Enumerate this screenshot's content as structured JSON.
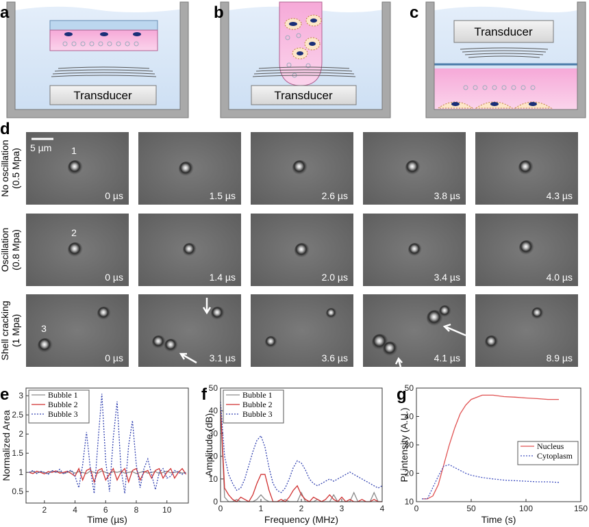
{
  "panels_top": [
    {
      "label": "a",
      "transducer": "Transducer"
    },
    {
      "label": "b",
      "transducer": "Transducer"
    },
    {
      "label": "c",
      "transducer": "Transducer"
    }
  ],
  "panel_d": {
    "label": "d",
    "scale_bar": "5 µm",
    "rows": [
      {
        "label": "No oscillation",
        "sublabel": "(0.5 Mpa)",
        "bubble": "1",
        "times": [
          "0 µs",
          "1.5 µs",
          "2.6 µs",
          "3.8 µs",
          "4.3 µs"
        ]
      },
      {
        "label": "Oscillation",
        "sublabel": "(0.8 Mpa)",
        "bubble": "2",
        "times": [
          "0 µs",
          "1.4 µs",
          "2.0 µs",
          "3.4 µs",
          "4.0 µs"
        ]
      },
      {
        "label": "Shell cracking",
        "sublabel": "(1 Mpa)",
        "bubble": "3",
        "times": [
          "0 µs",
          "3.1 µs",
          "3.6 µs",
          "4.1 µs",
          "8.9 µs"
        ]
      }
    ]
  },
  "chart_data": [
    {
      "type": "line",
      "label": "e",
      "x_label": "Time (µs)",
      "y_label": "Normalized Area",
      "xlim": [
        0.8,
        11.4
      ],
      "ylim": [
        0.2,
        3.2
      ],
      "xticks": [
        2,
        4,
        6,
        8,
        10
      ],
      "yticks": [
        0.5,
        1,
        1.5,
        2,
        2.5,
        3
      ],
      "legend": "upper left",
      "x": [
        1,
        1.25,
        1.5,
        1.75,
        2,
        2.25,
        2.5,
        2.75,
        3,
        3.25,
        3.5,
        3.75,
        4,
        4.25,
        4.5,
        4.75,
        5,
        5.25,
        5.5,
        5.75,
        6,
        6.25,
        6.5,
        6.75,
        7,
        7.25,
        7.5,
        7.75,
        8,
        8.25,
        8.5,
        8.75,
        9,
        9.25,
        9.5,
        9.75,
        10,
        10.25,
        10.5,
        10.75,
        11,
        11.25
      ],
      "series": [
        {
          "name": "Bubble 1",
          "color": "#8a8a8a",
          "line_style": "solid",
          "values": [
            1.0,
            1.03,
            0.98,
            1.02,
            1.0,
            0.97,
            1.04,
            1.0,
            1.02,
            0.97,
            1.0,
            1.03,
            0.98,
            1.02,
            1.0,
            0.97,
            1.03,
            1.0,
            0.98,
            1.04,
            1.0,
            0.97,
            1.02,
            1.0,
            1.03,
            0.98,
            1.0,
            1.02,
            0.97,
            1.0,
            1.03,
            0.98,
            1.0,
            1.02,
            0.97,
            1.0,
            1.03,
            0.99,
            1.0,
            1.02,
            0.98,
            1.0
          ]
        },
        {
          "name": "Bubble 2",
          "color": "#d03030",
          "line_style": "solid",
          "values": [
            1.0,
            0.97,
            1.03,
            1.0,
            0.96,
            1.02,
            1.0,
            1.04,
            0.98,
            1.0,
            1.03,
            0.97,
            0.9,
            1.1,
            0.8,
            1.05,
            1.1,
            0.75,
            1.05,
            1.1,
            0.8,
            0.95,
            1.1,
            0.8,
            1.0,
            1.1,
            0.75,
            1.05,
            1.1,
            0.8,
            1.0,
            1.05,
            0.85,
            1.05,
            1.1,
            0.85,
            1.0,
            1.1,
            0.85,
            1.0,
            1.1,
            0.95
          ]
        },
        {
          "name": "Bubble 3",
          "color": "#3040b0",
          "line_style": "dotted",
          "values": [
            1.0,
            1.05,
            0.97,
            1.03,
            1.0,
            0.95,
            1.05,
            1.0,
            1.08,
            0.96,
            1.02,
            1.06,
            0.9,
            0.6,
            1.2,
            2.05,
            1.1,
            0.45,
            1.8,
            3.05,
            1.3,
            0.5,
            1.9,
            2.85,
            1.1,
            0.45,
            1.7,
            2.35,
            1.2,
            0.6,
            1.1,
            1.35,
            0.95,
            0.55,
            1.0,
            1.1,
            0.85,
            0.9,
            1.05,
            1.0,
            0.95,
            1.0
          ]
        }
      ]
    },
    {
      "type": "line",
      "label": "f",
      "x_label": "Frequency (MHz)",
      "y_label": "Amplitude (dB)",
      "xlim": [
        0,
        4
      ],
      "ylim": [
        0,
        50
      ],
      "xticks": [
        0,
        1,
        2,
        3,
        4
      ],
      "yticks": [
        0,
        10,
        20,
        30,
        40,
        50
      ],
      "legend": "upper left",
      "x": [
        0,
        0.1,
        0.2,
        0.3,
        0.4,
        0.5,
        0.6,
        0.7,
        0.8,
        0.9,
        1,
        1.1,
        1.2,
        1.3,
        1.4,
        1.5,
        1.6,
        1.7,
        1.8,
        1.9,
        2,
        2.1,
        2.2,
        2.3,
        2.4,
        2.5,
        2.6,
        2.7,
        2.8,
        2.9,
        3,
        3.1,
        3.2,
        3.3,
        3.4,
        3.5,
        3.6,
        3.7,
        3.8,
        3.9,
        4
      ],
      "series": [
        {
          "name": "Bubble 1",
          "color": "#8a8a8a",
          "line_style": "solid",
          "values": [
            40,
            2,
            0,
            0,
            1,
            0,
            0,
            0,
            0,
            1,
            3,
            1,
            0,
            0,
            0,
            0,
            1,
            0,
            0,
            0,
            4,
            0,
            0,
            0,
            1,
            0,
            0,
            0,
            3,
            0,
            0,
            0,
            0,
            4,
            0,
            0,
            0,
            0,
            4,
            0,
            0
          ]
        },
        {
          "name": "Bubble 2",
          "color": "#d03030",
          "line_style": "solid",
          "values": [
            42,
            6,
            3,
            1,
            0,
            2,
            1,
            0,
            3,
            8,
            12,
            12,
            5,
            0,
            0,
            1,
            0,
            2,
            5,
            7,
            3,
            1,
            0,
            2,
            1,
            0,
            1,
            3,
            1,
            0,
            2,
            0,
            1,
            0,
            0,
            1,
            0,
            0,
            1,
            0,
            0
          ]
        },
        {
          "name": "Bubble 3",
          "color": "#3040b0",
          "line_style": "dotted",
          "values": [
            44,
            20,
            12,
            8,
            5,
            6,
            10,
            16,
            22,
            27,
            29,
            24,
            15,
            8,
            5,
            4,
            6,
            10,
            15,
            18,
            17,
            14,
            10,
            8,
            7,
            8,
            9,
            10,
            9,
            10,
            11,
            12,
            13,
            12,
            11,
            10,
            9,
            8,
            7,
            6,
            7
          ]
        }
      ]
    },
    {
      "type": "line",
      "label": "g",
      "x_label": "Time (s)",
      "y_label": "PI intensity (A.U.)",
      "xlim": [
        0,
        150
      ],
      "ylim": [
        10,
        50
      ],
      "xticks": [
        0,
        50,
        100,
        150
      ],
      "yticks": [
        10,
        20,
        30,
        40,
        50
      ],
      "legend": "center right",
      "x": [
        5,
        10,
        15,
        20,
        25,
        30,
        35,
        40,
        45,
        50,
        60,
        70,
        80,
        90,
        100,
        110,
        120,
        130
      ],
      "series": [
        {
          "name": "Nucleus",
          "color": "#e05050",
          "line_style": "solid",
          "values": [
            11,
            11,
            12,
            16,
            23,
            30,
            36,
            41,
            44,
            46,
            47.5,
            47.5,
            47,
            46.8,
            46.5,
            46.3,
            46,
            46
          ]
        },
        {
          "name": "Cytoplasm",
          "color": "#4050c0",
          "line_style": "dotted",
          "values": [
            11,
            11,
            15,
            19,
            22.5,
            23,
            22,
            21,
            20,
            19.3,
            18.5,
            18,
            17.6,
            17.4,
            17.2,
            17,
            17,
            16.8
          ]
        }
      ]
    }
  ]
}
